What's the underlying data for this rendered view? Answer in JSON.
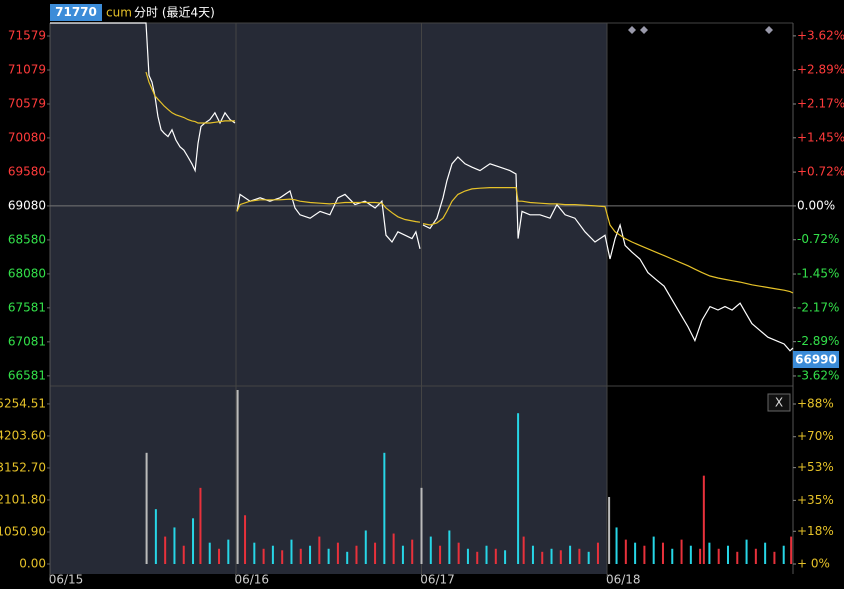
{
  "header": {
    "ref_price": 71770,
    "symbol": "cum",
    "title": "分时 (最近4天)",
    "last_price": 66990,
    "close_button": "X"
  },
  "chart_data": [
    {
      "type": "line",
      "xlim": [
        0,
        4
      ],
      "ylim": [
        66520,
        71770
      ],
      "yticks": [
        71579,
        71079,
        70579,
        70080,
        69580,
        69080,
        68580,
        68080,
        67581,
        67081,
        66581
      ],
      "y2lim": [
        -3.706,
        3.894
      ],
      "y2ticks": [
        {
          "value": 3.62,
          "label": "+3.62%"
        },
        {
          "value": 2.89,
          "label": "+2.89%"
        },
        {
          "value": 2.17,
          "label": "+2.17%"
        },
        {
          "value": 1.45,
          "label": "+1.45%"
        },
        {
          "value": 0.72,
          "label": "+0.72%"
        },
        {
          "value": 0,
          "label": "0.00%"
        },
        {
          "value": -0.72,
          "label": "-0.72%"
        },
        {
          "value": -1.45,
          "label": "-1.45%"
        },
        {
          "value": -2.17,
          "label": "-2.17%"
        },
        {
          "value": -2.89,
          "label": "-2.89%"
        },
        {
          "value": -3.62,
          "label": "-3.62%"
        }
      ],
      "x": [
        0,
        0.517,
        0.533,
        0.549,
        0.565,
        0.581,
        0.598,
        0.614,
        0.635,
        0.657,
        0.678,
        0.7,
        0.721,
        0.743,
        0.764,
        0.781,
        0.797,
        0.813,
        0.834,
        0.861,
        0.888,
        0.915,
        0.942,
        0.969,
        0.996,
        1.0,
        1.007,
        1.023,
        1.077,
        1.131,
        1.184,
        1.238,
        1.292,
        1.319,
        1.346,
        1.4,
        1.454,
        1.507,
        1.55,
        1.588,
        1.642,
        1.696,
        1.75,
        1.787,
        1.809,
        1.841,
        1.873,
        1.911,
        1.949,
        1.97,
        1.992,
        2.0,
        2.008,
        2.046,
        2.083,
        2.116,
        2.137,
        2.164,
        2.196,
        2.234,
        2.272,
        2.315,
        2.369,
        2.423,
        2.476,
        2.509,
        2.52,
        2.541,
        2.584,
        2.638,
        2.692,
        2.729,
        2.773,
        2.826,
        2.88,
        2.934,
        2.988,
        3.015,
        3.042,
        3.069,
        3.096,
        3.133,
        3.176,
        3.219,
        3.262,
        3.306,
        3.349,
        3.392,
        3.435,
        3.472,
        3.51,
        3.553,
        3.596,
        3.634,
        3.672,
        3.715,
        3.747,
        3.779,
        3.822,
        3.865,
        3.908,
        3.952,
        3.984,
        4.0
      ],
      "series": [
        {
          "color": "#ffffff",
          "values": [
            71770,
            71770,
            71000,
            70900,
            70700,
            70400,
            70200,
            70150,
            70100,
            70200,
            70050,
            69950,
            69900,
            69800,
            69700,
            69600,
            70000,
            70250,
            70300,
            70350,
            70450,
            70300,
            70450,
            70350,
            70300,
            null,
            69000,
            69250,
            69150,
            69200,
            69150,
            69200,
            69300,
            69050,
            68950,
            68900,
            69000,
            68950,
            69200,
            69250,
            69100,
            69150,
            69050,
            69150,
            68650,
            68550,
            68700,
            68650,
            68600,
            68700,
            68450,
            null,
            68800,
            68750,
            68900,
            69200,
            69450,
            69700,
            69800,
            69700,
            69650,
            69600,
            69700,
            69650,
            69600,
            69550,
            68600,
            69000,
            68950,
            68950,
            68900,
            69100,
            68950,
            68900,
            68700,
            68550,
            68650,
            68300,
            68600,
            68800,
            68500,
            68400,
            68300,
            68100,
            68000,
            67900,
            67700,
            67500,
            67300,
            67100,
            67400,
            67600,
            67550,
            67600,
            67550,
            67650,
            67500,
            67350,
            67250,
            67150,
            67100,
            67050,
            66950,
            66990
          ]
        },
        {
          "color": "#e6c229",
          "values": [
            null,
            71050,
            70900,
            70800,
            70700,
            70650,
            70600,
            70550,
            70500,
            70450,
            70420,
            70400,
            70380,
            70350,
            70330,
            70320,
            70300,
            70300,
            70300,
            70300,
            70310,
            70320,
            70330,
            70330,
            70330,
            null,
            69000,
            69100,
            69150,
            69170,
            69170,
            69170,
            69180,
            69170,
            69150,
            69130,
            69120,
            69110,
            69120,
            69130,
            69130,
            69130,
            69130,
            69120,
            69050,
            68980,
            68920,
            68880,
            68860,
            68850,
            68840,
            null,
            68820,
            68800,
            68830,
            68900,
            69000,
            69150,
            69250,
            69300,
            69330,
            69340,
            69350,
            69350,
            69350,
            69350,
            69150,
            69150,
            69130,
            69120,
            69110,
            69110,
            69100,
            69100,
            69090,
            69080,
            69070,
            68800,
            68700,
            68650,
            68600,
            68550,
            68500,
            68450,
            68400,
            68350,
            68300,
            68250,
            68200,
            68150,
            68100,
            68050,
            68020,
            68000,
            67980,
            67960,
            67940,
            67920,
            67900,
            67880,
            67860,
            67840,
            67820,
            67800
          ]
        }
      ]
    },
    {
      "type": "bar",
      "xlim": [
        0,
        4
      ],
      "ylim": [
        0,
        5712
      ],
      "xticks": [
        {
          "value": 0,
          "label": "06/15"
        },
        {
          "value": 1,
          "label": "06/16"
        },
        {
          "value": 2,
          "label": "06/17"
        },
        {
          "value": 3,
          "label": "06/18"
        }
      ],
      "yticks": [
        5254.51,
        {
          "value": 4203.6,
          "label": "4203.60"
        },
        {
          "value": 3152.7,
          "label": "3152.70"
        },
        {
          "value": 2101.8,
          "label": "2101.80"
        },
        {
          "value": 1050.9,
          "label": "1050.90"
        },
        {
          "value": 0,
          "label": "0.00"
        }
      ],
      "y2lim": [
        0,
        95.7
      ],
      "y2ticks": [
        {
          "value": 88,
          "label": "+88%"
        },
        {
          "value": 70,
          "label": "+70%"
        },
        {
          "value": 53,
          "label": "+53%"
        },
        {
          "value": 35,
          "label": "+35%"
        },
        {
          "value": 18,
          "label": "+18%"
        },
        {
          "value": 0,
          "label": "+ 0%"
        }
      ],
      "x": [
        0.52,
        0.57,
        0.62,
        0.67,
        0.72,
        0.77,
        0.81,
        0.86,
        0.91,
        0.96,
        1.01,
        1.05,
        1.1,
        1.15,
        1.2,
        1.25,
        1.3,
        1.35,
        1.4,
        1.45,
        1.5,
        1.55,
        1.6,
        1.65,
        1.7,
        1.75,
        1.8,
        1.85,
        1.9,
        1.95,
        2.0,
        2.05,
        2.1,
        2.15,
        2.2,
        2.25,
        2.3,
        2.35,
        2.4,
        2.45,
        2.52,
        2.55,
        2.6,
        2.65,
        2.7,
        2.75,
        2.8,
        2.85,
        2.9,
        2.95,
        3.01,
        3.05,
        3.1,
        3.15,
        3.2,
        3.25,
        3.3,
        3.35,
        3.4,
        3.45,
        3.5,
        3.52,
        3.55,
        3.6,
        3.65,
        3.7,
        3.75,
        3.8,
        3.85,
        3.9,
        3.95,
        3.99
      ],
      "values": [
        3650,
        1800,
        900,
        1200,
        600,
        1500,
        2500,
        700,
        500,
        800,
        5712,
        1600,
        700,
        500,
        600,
        450,
        800,
        500,
        600,
        900,
        500,
        700,
        400,
        600,
        1100,
        700,
        3650,
        1000,
        600,
        800,
        2500,
        900,
        600,
        1100,
        700,
        500,
        400,
        600,
        500,
        450,
        4950,
        900,
        600,
        400,
        500,
        450,
        600,
        500,
        400,
        700,
        2200,
        1200,
        800,
        700,
        600,
        900,
        700,
        500,
        800,
        600,
        500,
        2900,
        700,
        500,
        600,
        400,
        800,
        500,
        700,
        400,
        600,
        900
      ],
      "colors": [
        "#bbbbbb",
        "#27d6e6",
        "#e8313b",
        "#27d6e6",
        "#e8313b",
        "#27d6e6",
        "#e8313b",
        "#27d6e6",
        "#e8313b",
        "#27d6e6",
        "#bbbbbb",
        "#e8313b",
        "#27d6e6",
        "#e8313b",
        "#27d6e6",
        "#e8313b",
        "#27d6e6",
        "#e8313b",
        "#27d6e6",
        "#e8313b",
        "#27d6e6",
        "#e8313b",
        "#27d6e6",
        "#e8313b",
        "#27d6e6",
        "#e8313b",
        "#27d6e6",
        "#e8313b",
        "#27d6e6",
        "#e8313b",
        "#bbbbbb",
        "#27d6e6",
        "#e8313b",
        "#27d6e6",
        "#e8313b",
        "#27d6e6",
        "#e8313b",
        "#27d6e6",
        "#e8313b",
        "#27d6e6",
        "#27d6e6",
        "#e8313b",
        "#27d6e6",
        "#e8313b",
        "#27d6e6",
        "#e8313b",
        "#27d6e6",
        "#e8313b",
        "#27d6e6",
        "#e8313b",
        "#bbbbbb",
        "#27d6e6",
        "#e8313b",
        "#27d6e6",
        "#e8313b",
        "#27d6e6",
        "#e8313b",
        "#27d6e6",
        "#e8313b",
        "#27d6e6",
        "#e8313b",
        "#e8313b",
        "#27d6e6",
        "#e8313b",
        "#27d6e6",
        "#e8313b",
        "#27d6e6",
        "#e8313b",
        "#27d6e6",
        "#e8313b",
        "#27d6e6",
        "#e8313b"
      ]
    }
  ]
}
